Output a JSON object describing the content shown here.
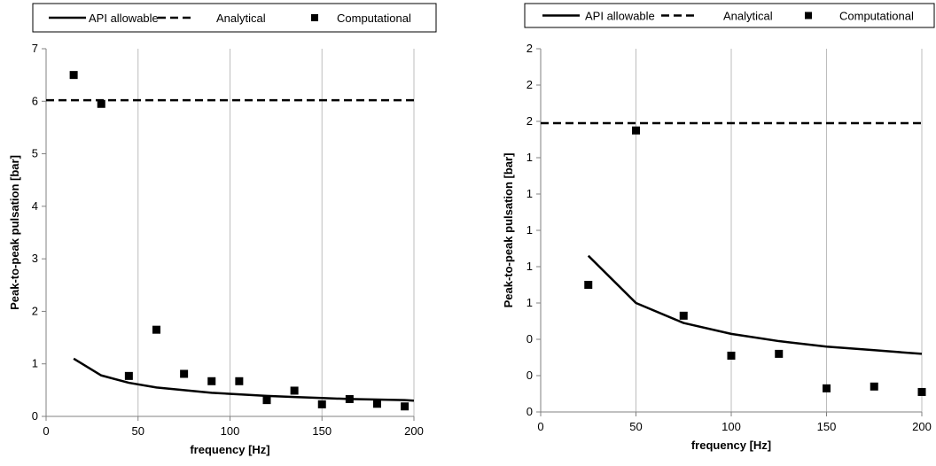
{
  "chart_data": [
    {
      "type": "line",
      "xlabel": "frequency [Hz]",
      "ylabel": "Peak-to-peak pulsation [bar]",
      "xlim": [
        0,
        200
      ],
      "ylim": [
        0,
        7
      ],
      "x_ticks": [
        0,
        50,
        100,
        150,
        200
      ],
      "y_ticks": [
        0,
        1,
        2,
        3,
        4,
        5,
        6,
        7
      ],
      "y_tick_labels": [
        "0",
        "1",
        "2",
        "3",
        "4",
        "5",
        "6",
        "7"
      ],
      "grid": "vertical",
      "legend": "top",
      "series": [
        {
          "name": "API allowable",
          "style": "solid",
          "x": [
            15,
            30,
            45,
            60,
            75,
            90,
            105,
            120,
            135,
            150,
            165,
            180,
            195,
            200
          ],
          "y": [
            1.1,
            0.78,
            0.64,
            0.55,
            0.5,
            0.45,
            0.42,
            0.39,
            0.37,
            0.35,
            0.33,
            0.32,
            0.31,
            0.3
          ]
        },
        {
          "name": "Analytical",
          "style": "dashed",
          "x": [
            0,
            200
          ],
          "y": [
            6.02,
            6.02
          ]
        },
        {
          "name": "Computational",
          "style": "markers",
          "x": [
            15,
            30,
            45,
            60,
            75,
            90,
            105,
            120,
            135,
            150,
            165,
            180,
            195
          ],
          "y": [
            6.5,
            5.95,
            0.77,
            1.65,
            0.81,
            0.67,
            0.67,
            0.31,
            0.49,
            0.23,
            0.33,
            0.24,
            0.19
          ]
        }
      ]
    },
    {
      "type": "line",
      "xlabel": "frequency [Hz]",
      "ylabel": "Peak-to-peak pulsation [bar]",
      "xlim": [
        0,
        200
      ],
      "ylim": [
        0,
        2
      ],
      "x_ticks": [
        0,
        50,
        100,
        150,
        200
      ],
      "y_ticks": [
        0,
        0.2,
        0.4,
        0.6,
        0.8,
        1.0,
        1.2,
        1.4,
        1.6,
        1.8,
        2.0
      ],
      "y_tick_labels": [
        "0",
        "0",
        "0",
        "1",
        "1",
        "1",
        "1",
        "1",
        "2",
        "2",
        "2"
      ],
      "grid": "vertical",
      "legend": "top",
      "series": [
        {
          "name": "API allowable",
          "style": "solid",
          "x": [
            25,
            50,
            75,
            100,
            125,
            150,
            175,
            200
          ],
          "y": [
            0.86,
            0.6,
            0.49,
            0.43,
            0.39,
            0.36,
            0.34,
            0.32
          ]
        },
        {
          "name": "Analytical",
          "style": "dashed",
          "x": [
            0,
            200
          ],
          "y": [
            1.59,
            1.59
          ]
        },
        {
          "name": "Computational",
          "style": "markers",
          "x": [
            25,
            50,
            75,
            100,
            125,
            150,
            175,
            200
          ],
          "y": [
            0.7,
            1.55,
            0.53,
            0.31,
            0.32,
            0.13,
            0.14,
            0.11
          ]
        }
      ]
    }
  ]
}
